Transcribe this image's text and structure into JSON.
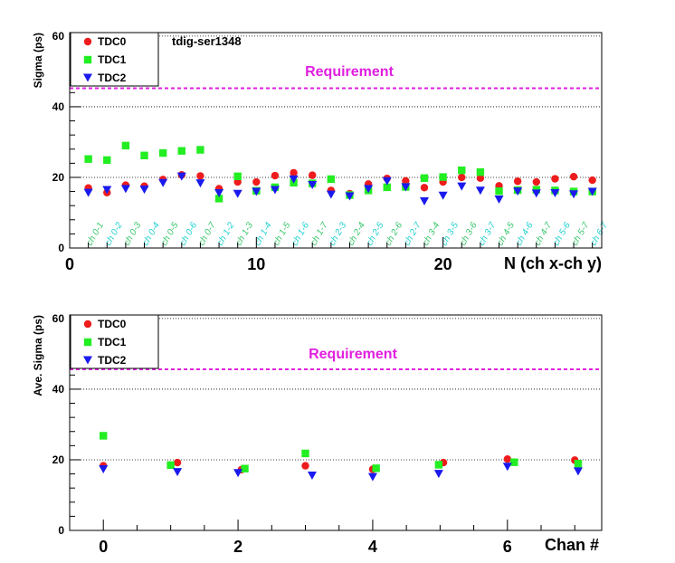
{
  "colors": {
    "tdc0": "#ee1c1c",
    "tdc1": "#22ee22",
    "tdc2": "#1a1aee",
    "requirement": "#e020e0",
    "chan_label_a": "#39c66b",
    "chan_label_b": "#22d0d0"
  },
  "chart_data": [
    {
      "type": "scatter",
      "annotation": "tdig-ser1348",
      "xlabel": "N (ch x-ch y)",
      "ylabel": "Sigma (ps)",
      "xlim": [
        0,
        28.5
      ],
      "ylim": [
        0,
        61
      ],
      "yticks": [
        0,
        20,
        40,
        60
      ],
      "xticks": [
        0,
        10,
        20
      ],
      "requirement": {
        "label": "Requirement",
        "value": 45
      },
      "grid_y": [
        20,
        40,
        60
      ],
      "legend": {
        "placement": "top-left",
        "entries": [
          "TDC0",
          "TDC1",
          "TDC2"
        ]
      },
      "point_labels": [
        "ch 0-1",
        "ch 0-2",
        "ch 0-3",
        "ch 0-4",
        "ch 0-5",
        "ch 0-6",
        "ch 0-7",
        "ch 1-2",
        "ch 1-3",
        "ch 1-4",
        "ch 1-5",
        "ch 1-6",
        "ch 1-7",
        "ch 2-3",
        "ch 2-4",
        "ch 2-5",
        "ch 2-6",
        "ch 2-7",
        "ch 3-4",
        "ch 3-5",
        "ch 3-6",
        "ch 3-7",
        "ch 4-5",
        "ch 4-6",
        "ch 4-7",
        "ch 5-6",
        "ch 5-7",
        "ch 6-7"
      ],
      "x": [
        1,
        2,
        3,
        4,
        5,
        6,
        7,
        8,
        9,
        10,
        11,
        12,
        13,
        14,
        15,
        16,
        17,
        18,
        19,
        20,
        21,
        22,
        23,
        24,
        25,
        26,
        27,
        28
      ],
      "series": [
        {
          "name": "TDC0",
          "marker": "circle",
          "values": [
            17,
            15.7,
            17.8,
            17.5,
            19.4,
            20.7,
            20.4,
            16.8,
            18.7,
            18.7,
            20.5,
            21.3,
            20.6,
            16.3,
            15.4,
            18.1,
            19.7,
            19,
            17.1,
            18.7,
            20,
            19.8,
            17.6,
            18.9,
            18.7,
            19.6,
            20.2,
            19.2
          ]
        },
        {
          "name": "TDC1",
          "marker": "square",
          "values": [
            25.2,
            24.9,
            29,
            26.2,
            26.9,
            27.5,
            27.8,
            14,
            20.3,
            16.2,
            17.2,
            18.5,
            18.3,
            19.5,
            15,
            16.3,
            17.2,
            17.3,
            19.8,
            20.1,
            22,
            21.5,
            16.1,
            16.4,
            16.5,
            16.3,
            16,
            16
          ]
        },
        {
          "name": "TDC2",
          "marker": "triangle-down",
          "values": [
            15.6,
            16.4,
            16.7,
            16.5,
            18.4,
            20.2,
            18.3,
            15.5,
            15.3,
            15.9,
            16.4,
            19.4,
            17.8,
            15.1,
            14.6,
            16.7,
            18.9,
            17.2,
            13.2,
            14.8,
            17.4,
            16.2,
            13.7,
            16,
            15.4,
            15.5,
            15.2,
            15.9
          ]
        }
      ]
    },
    {
      "type": "scatter",
      "xlabel": "Chan #",
      "ylabel": "Ave. Sigma (ps)",
      "xlim": [
        -0.5,
        7.4
      ],
      "ylim": [
        0,
        61
      ],
      "yticks": [
        0,
        20,
        40,
        60
      ],
      "xticks": [
        0,
        2,
        4,
        6
      ],
      "requirement": {
        "label": "Requirement",
        "value": 45
      },
      "grid_y": [
        20,
        40,
        60
      ],
      "legend": {
        "placement": "top-left",
        "entries": [
          "TDC0",
          "TDC1",
          "TDC2"
        ]
      },
      "series": [
        {
          "name": "TDC0",
          "marker": "circle",
          "x": [
            0,
            1.1,
            2.05,
            3,
            4,
            5.05,
            6,
            7
          ],
          "values": [
            18.3,
            19.2,
            17.2,
            18.3,
            17.3,
            19.2,
            20.2,
            19.9
          ]
        },
        {
          "name": "TDC1",
          "marker": "square",
          "x": [
            0,
            1,
            2.1,
            3,
            4.05,
            4.98,
            6.1,
            7.05
          ],
          "values": [
            26.8,
            18.5,
            17.5,
            21.8,
            17.6,
            18.6,
            19.3,
            18.9
          ]
        },
        {
          "name": "TDC2",
          "marker": "triangle-down",
          "x": [
            0,
            1.1,
            2,
            3.1,
            4,
            4.98,
            6,
            7.05
          ],
          "values": [
            17.3,
            16.5,
            16.2,
            15.5,
            15.1,
            16,
            18,
            16.7
          ]
        }
      ]
    }
  ]
}
